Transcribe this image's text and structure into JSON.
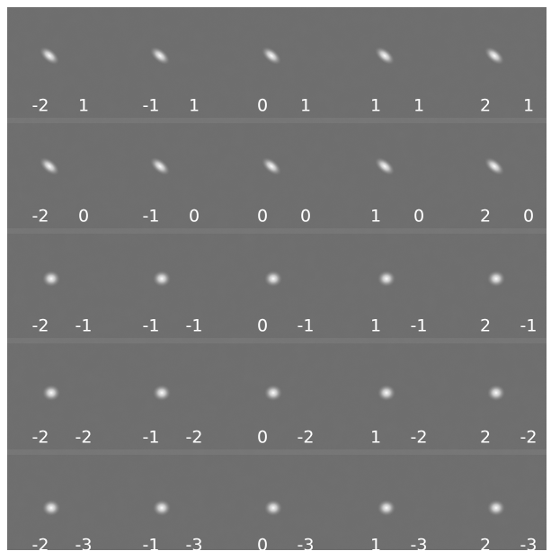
{
  "grid": {
    "rows": [
      {
        "cells": [
          {
            "x": "-2",
            "y": "1"
          },
          {
            "x": "-1",
            "y": "1"
          },
          {
            "x": "0",
            "y": "1"
          },
          {
            "x": "1",
            "y": "1"
          },
          {
            "x": "2",
            "y": "1"
          }
        ]
      },
      {
        "cells": [
          {
            "x": "-2",
            "y": "0"
          },
          {
            "x": "-1",
            "y": "0"
          },
          {
            "x": "0",
            "y": "0"
          },
          {
            "x": "1",
            "y": "0"
          },
          {
            "x": "2",
            "y": "0"
          }
        ]
      },
      {
        "cells": [
          {
            "x": "-2",
            "y": "-1"
          },
          {
            "x": "-1",
            "y": "-1"
          },
          {
            "x": "0",
            "y": "-1"
          },
          {
            "x": "1",
            "y": "-1"
          },
          {
            "x": "2",
            "y": "-1"
          }
        ]
      },
      {
        "cells": [
          {
            "x": "-2",
            "y": "-2"
          },
          {
            "x": "-1",
            "y": "-2"
          },
          {
            "x": "0",
            "y": "-2"
          },
          {
            "x": "1",
            "y": "-2"
          },
          {
            "x": "2",
            "y": "-2"
          }
        ]
      },
      {
        "cells": [
          {
            "x": "-2",
            "y": "-3"
          },
          {
            "x": "-1",
            "y": "-3"
          },
          {
            "x": "0",
            "y": "-3"
          },
          {
            "x": "1",
            "y": "-3"
          },
          {
            "x": "2",
            "y": "-3"
          }
        ]
      }
    ]
  }
}
